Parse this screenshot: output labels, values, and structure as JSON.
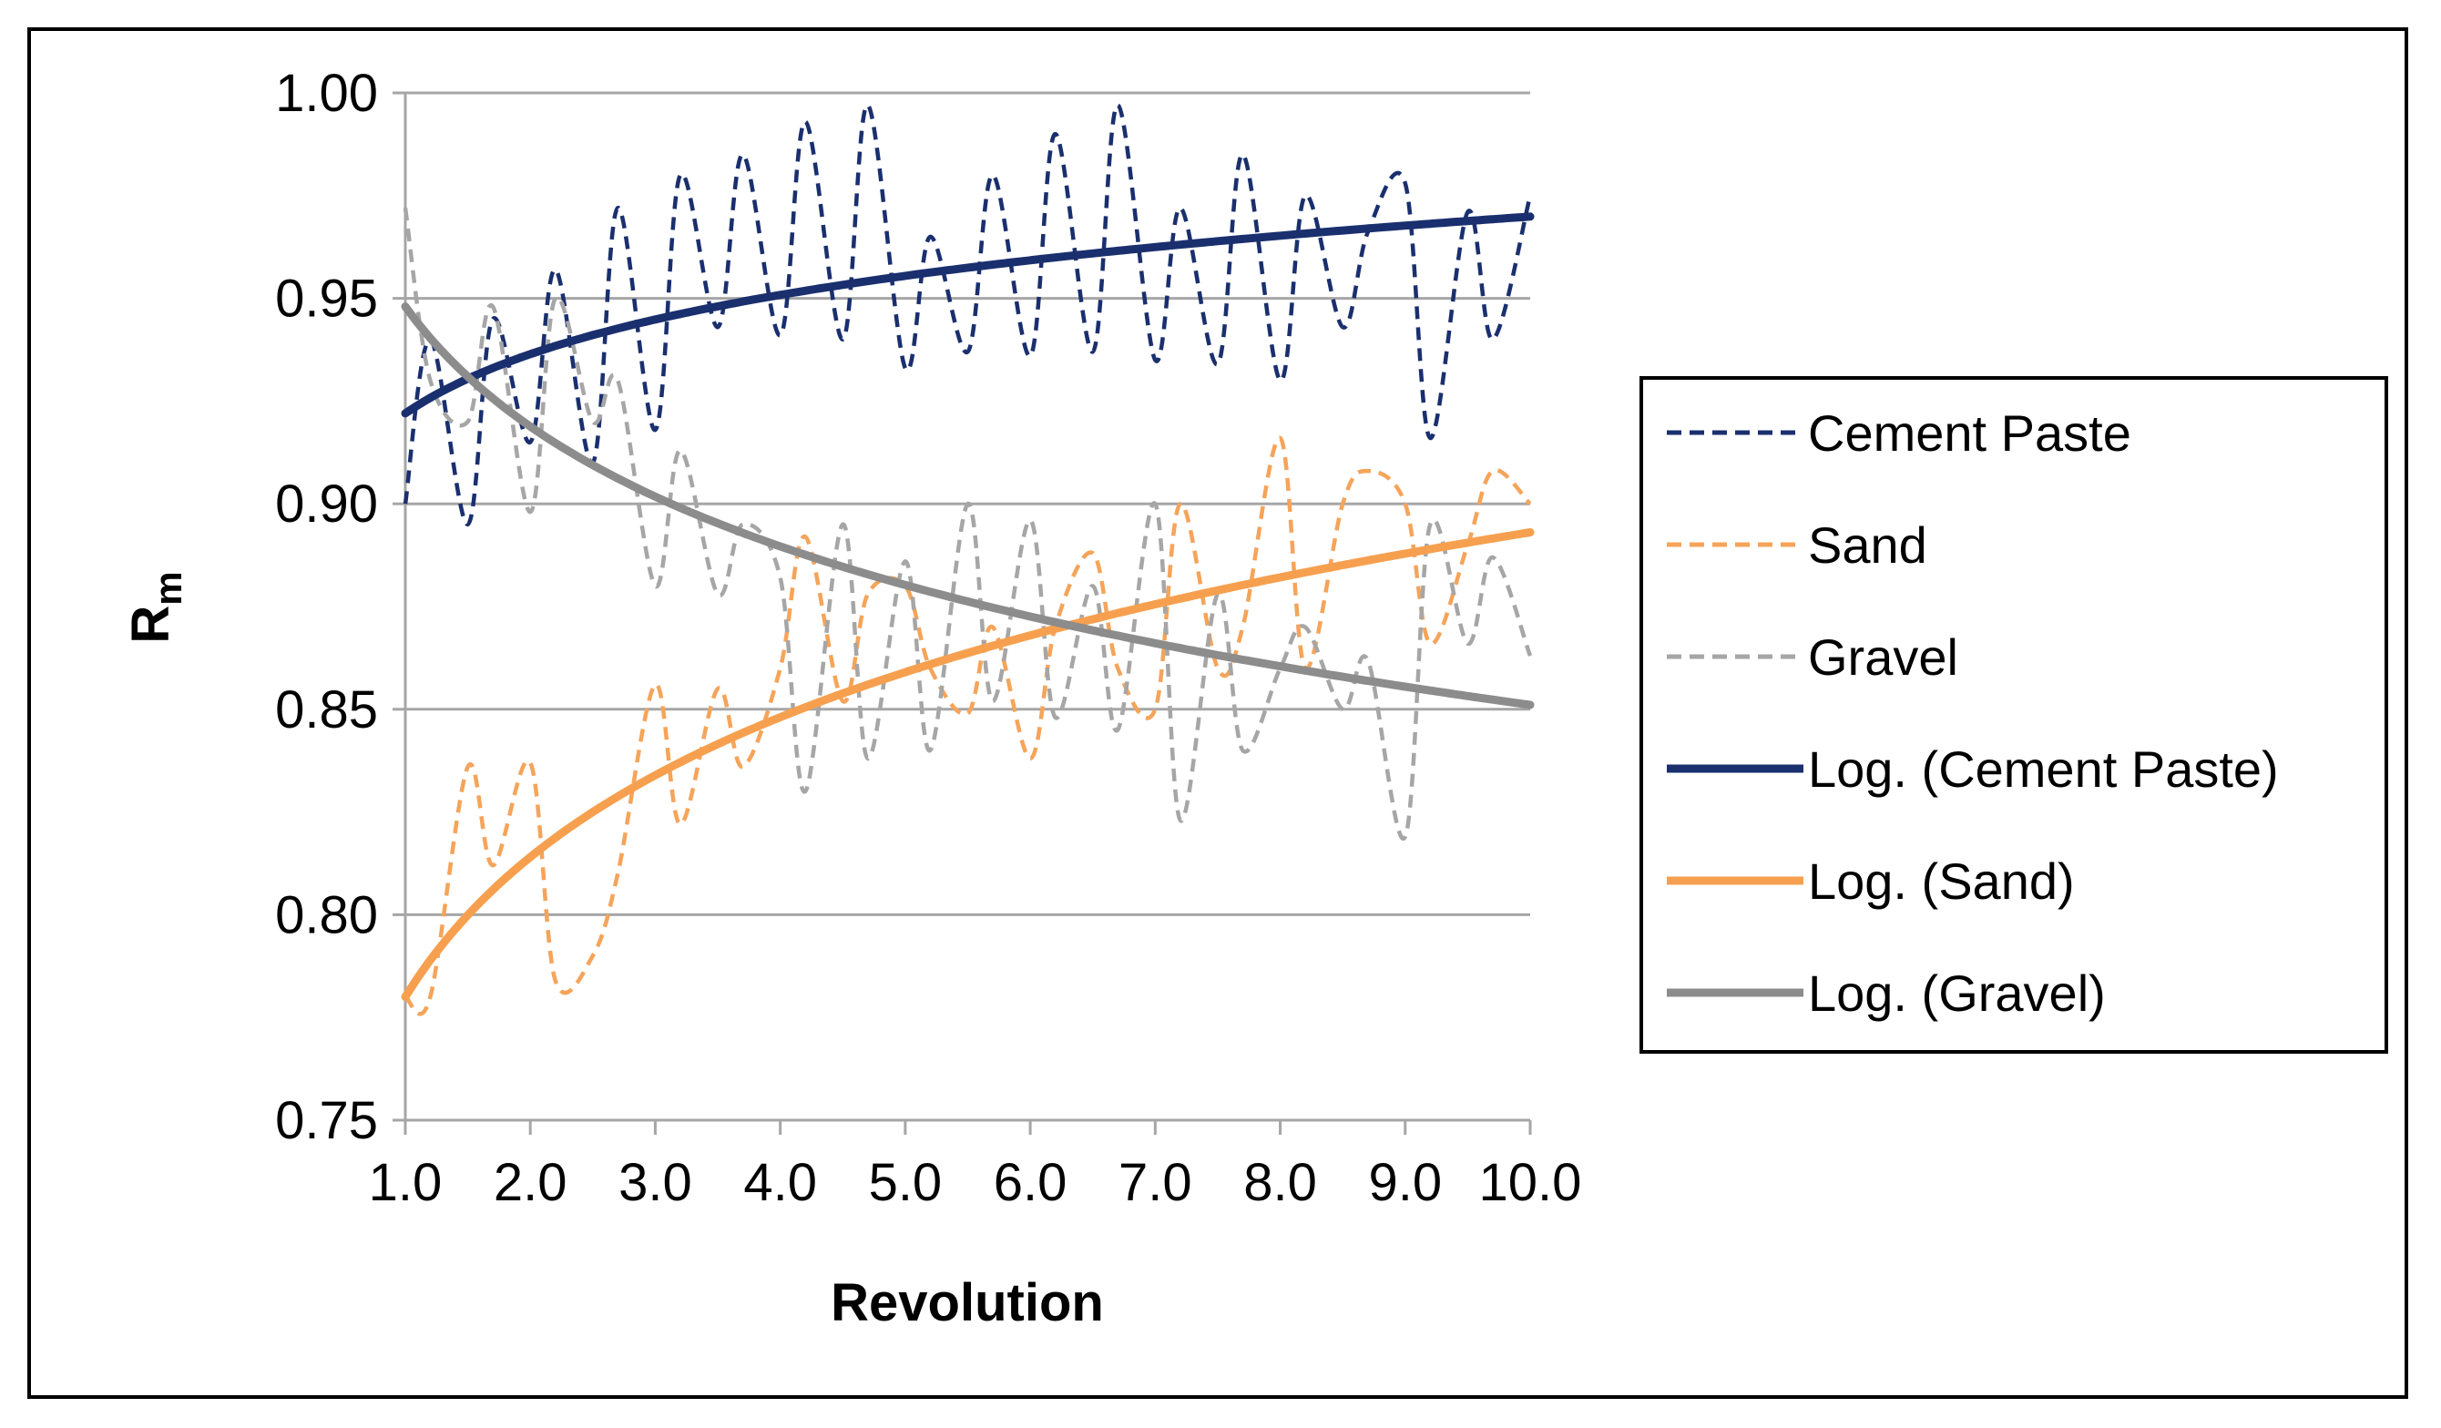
{
  "chart_data": {
    "type": "line",
    "title": "",
    "xlabel": "Revolution",
    "ylabel": "R",
    "ylabel_subscript": "m",
    "xlim": [
      1,
      10
    ],
    "ylim": [
      0.75,
      1.0
    ],
    "x_ticks": [
      "1.0",
      "2.0",
      "3.0",
      "4.0",
      "5.0",
      "6.0",
      "7.0",
      "8.0",
      "9.0",
      "10.0"
    ],
    "y_ticks": [
      "0.75",
      "0.80",
      "0.85",
      "0.90",
      "0.95",
      "1.00"
    ],
    "grid": "horizontal",
    "legend_position": "right",
    "x": [
      1.0,
      1.2,
      1.5,
      1.7,
      2.0,
      2.2,
      2.5,
      2.7,
      3.0,
      3.2,
      3.5,
      3.7,
      4.0,
      4.2,
      4.5,
      4.7,
      5.0,
      5.2,
      5.5,
      5.7,
      6.0,
      6.2,
      6.5,
      6.7,
      7.0,
      7.2,
      7.5,
      7.7,
      8.0,
      8.2,
      8.5,
      8.7,
      9.0,
      9.2,
      9.5,
      9.7,
      10.0
    ],
    "series": [
      {
        "name": "Cement Paste",
        "style": "dashed",
        "color": "#1a2f6e",
        "values": [
          0.9,
          0.94,
          0.895,
          0.945,
          0.915,
          0.957,
          0.91,
          0.972,
          0.918,
          0.98,
          0.943,
          0.985,
          0.941,
          0.993,
          0.94,
          0.997,
          0.933,
          0.965,
          0.937,
          0.98,
          0.936,
          0.99,
          0.937,
          0.997,
          0.935,
          0.972,
          0.934,
          0.985,
          0.93,
          0.975,
          0.943,
          0.966,
          0.978,
          0.916,
          0.971,
          0.94,
          0.975
        ]
      },
      {
        "name": "Sand",
        "style": "dashed",
        "color": "#f5a45a",
        "values": [
          0.78,
          0.78,
          0.836,
          0.812,
          0.837,
          0.784,
          0.79,
          0.81,
          0.856,
          0.822,
          0.855,
          0.836,
          0.86,
          0.892,
          0.852,
          0.878,
          0.88,
          0.86,
          0.849,
          0.87,
          0.838,
          0.87,
          0.888,
          0.86,
          0.85,
          0.9,
          0.86,
          0.87,
          0.916,
          0.86,
          0.9,
          0.908,
          0.9,
          0.866,
          0.89,
          0.908,
          0.9
        ]
      },
      {
        "name": "Gravel",
        "style": "dashed",
        "color": "#a6a6a6",
        "values": [
          0.972,
          0.93,
          0.92,
          0.948,
          0.898,
          0.95,
          0.92,
          0.93,
          0.88,
          0.913,
          0.878,
          0.895,
          0.882,
          0.83,
          0.895,
          0.838,
          0.886,
          0.84,
          0.9,
          0.852,
          0.896,
          0.848,
          0.88,
          0.845,
          0.9,
          0.823,
          0.878,
          0.84,
          0.86,
          0.87,
          0.85,
          0.862,
          0.819,
          0.895,
          0.866,
          0.887,
          0.863
        ]
      },
      {
        "name": "Log. (Cement Paste)",
        "style": "solid",
        "color": "#1a2f6e",
        "trend": "log",
        "a": 0.922,
        "b": 0.0208
      },
      {
        "name": "Log. (Sand)",
        "style": "solid",
        "color": "#f6a04f",
        "trend": "log",
        "a": 0.78,
        "b": 0.0491
      },
      {
        "name": "Log. (Gravel)",
        "style": "solid",
        "color": "#8c8c8c",
        "trend": "log",
        "a": 0.948,
        "b": -0.0421
      }
    ]
  }
}
